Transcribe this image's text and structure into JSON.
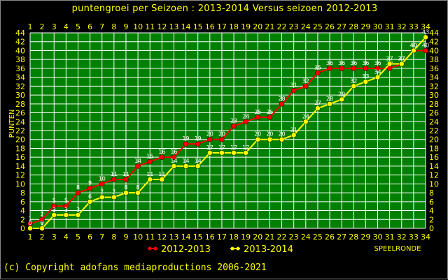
{
  "chart_data": {
    "type": "line",
    "title": "puntengroei per Seizoen : 2013-2014 Versus seizoen 2012-2013",
    "xlabel": "SPEELRONDE",
    "ylabel": "PUNTEN",
    "x": [
      1,
      2,
      3,
      4,
      5,
      6,
      7,
      8,
      9,
      10,
      11,
      12,
      13,
      14,
      15,
      16,
      17,
      18,
      19,
      20,
      21,
      22,
      23,
      24,
      25,
      26,
      27,
      28,
      29,
      30,
      31,
      32,
      33,
      34
    ],
    "xlim": [
      1,
      34
    ],
    "ylim": [
      0,
      44
    ],
    "y_ticks": [
      0,
      2,
      4,
      6,
      8,
      10,
      12,
      14,
      16,
      18,
      20,
      22,
      24,
      26,
      28,
      30,
      32,
      34,
      36,
      38,
      40,
      42,
      44
    ],
    "grid": true,
    "background": "#008000",
    "grid_color": "#ffffff",
    "series": [
      {
        "name": "2012-2013",
        "color": "#ff0000",
        "values": [
          1,
          2,
          5,
          5,
          8,
          9,
          10,
          11,
          11,
          14,
          15,
          16,
          16,
          19,
          19,
          20,
          20,
          23,
          24,
          25,
          25,
          28,
          31,
          32,
          35,
          36,
          36,
          36,
          36,
          36,
          36,
          37,
          40,
          40
        ]
      },
      {
        "name": "2013-2014",
        "color": "#ffff00",
        "values": [
          0,
          0,
          3,
          3,
          3,
          6,
          7,
          7,
          8,
          8,
          11,
          11,
          14,
          14,
          14,
          17,
          17,
          17,
          17,
          20,
          20,
          20,
          21,
          24,
          27,
          28,
          29,
          32,
          33,
          34,
          37,
          37,
          40,
          43
        ]
      }
    ],
    "legend": {
      "position": "bottom",
      "items": [
        {
          "label": "2012-2013",
          "color": "#ff0000"
        },
        {
          "label": "2013-2014",
          "color": "#ffff00"
        }
      ]
    }
  },
  "footer": {
    "copyright": "(c) Copyright adofans mediaproductions 2006-2021"
  }
}
